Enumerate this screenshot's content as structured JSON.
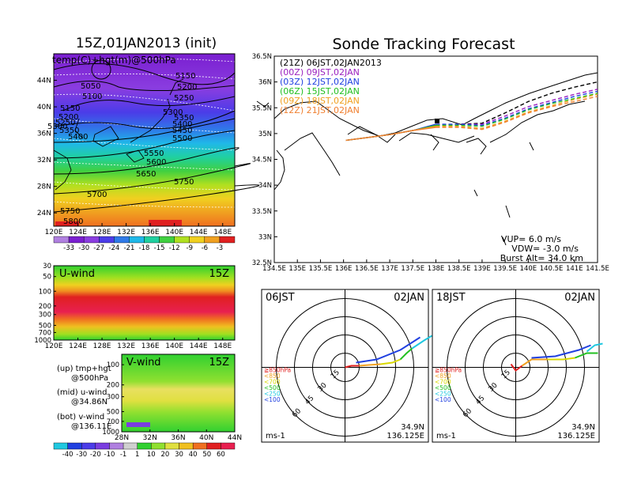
{
  "titles": {
    "map_title": "15Z,01JAN2013 (init)",
    "main_title": "Sonde Tracking Forecast"
  },
  "upper_panel": {
    "label": "temp(C)+hgt(m)@500hPa",
    "contours": [
      "5050",
      "5100",
      "5150",
      "5200",
      "5250",
      "5150",
      "5200",
      "5250",
      "5300",
      "5350",
      "5300",
      "5350",
      "5400",
      "5450",
      "5400",
      "5500",
      "5550",
      "5600",
      "5650",
      "5750",
      "5700",
      "5750",
      "5800"
    ],
    "colorbar_ticks": [
      "-33",
      "-30",
      "-27",
      "-24",
      "-21",
      "-18",
      "-15",
      "-12",
      "-9",
      "-6",
      "-3"
    ]
  },
  "u_panel": {
    "label": "U-wind",
    "time": "15Z"
  },
  "v_panel": {
    "label": "V-wind",
    "time": "15Z"
  },
  "left_legend": {
    "up": "(up) tmp+hgt",
    "up2": "@500hPa",
    "mid": "(mid) u-wind",
    "mid2": "@34.86N",
    "bot": "(bot) v-wind",
    "bot2": "@136.11E"
  },
  "wind_colorbar_ticks": [
    "-40",
    "-30",
    "-20",
    "-10",
    "-1",
    "1",
    "10",
    "20",
    "30",
    "40",
    "50",
    "60"
  ],
  "tracking": {
    "legend": [
      {
        "text": "(21Z) 06JST,02JAN2013",
        "color": "#000000"
      },
      {
        "text": "(00Z) 09JST,02JAN",
        "color": "#9a1fbf"
      },
      {
        "text": "(03Z) 12JST,02JAN",
        "color": "#2040e0"
      },
      {
        "text": "(06Z) 15JST,02JAN",
        "color": "#22c020"
      },
      {
        "text": "(09Z) 18JST,02JAN",
        "color": "#f0a020"
      },
      {
        "text": "(12Z) 21JST,02JAN",
        "color": "#f08030"
      }
    ],
    "params": {
      "vup": "VUP= 6.0 m/s",
      "vdw": "VDW= -3.0 m/s",
      "burst": "Burst Alt= 34.0 km"
    }
  },
  "hodographs": [
    {
      "time": "06JST",
      "date": "02JAN",
      "lat": "34.9N",
      "lon": "136.125E",
      "unit": "ms-1"
    },
    {
      "time": "18JST",
      "date": "02JAN",
      "lat": "34.9N",
      "lon": "136.125E",
      "unit": "ms-1"
    }
  ],
  "hodo_levels": [
    {
      "text": "≧850hPa",
      "color": "#e02020"
    },
    {
      "text": "<850",
      "color": "#f0a020"
    },
    {
      "text": "<700",
      "color": "#d8d800"
    },
    {
      "text": "<500",
      "color": "#22c020"
    },
    {
      "text": "<250",
      "color": "#20c8e0"
    },
    {
      "text": "<100",
      "color": "#2040e0"
    }
  ],
  "chart_data": [
    {
      "type": "heatmap",
      "title": "15Z,01JAN2013 (init)",
      "subtitle": "temp(C)+hgt(m)@500hPa",
      "x_ticks": [
        "120E",
        "124E",
        "128E",
        "132E",
        "136E",
        "140E",
        "144E",
        "148E"
      ],
      "y_ticks": [
        "24N",
        "28N",
        "32N",
        "36N",
        "40N",
        "44N"
      ],
      "xlim": [
        120,
        150
      ],
      "ylim": [
        22,
        48
      ],
      "colorbar": [
        -33,
        -30,
        -27,
        -24,
        -21,
        -18,
        -15,
        -12,
        -9,
        -6,
        -3
      ]
    },
    {
      "type": "heatmap",
      "title": "U-wind",
      "time": "15Z",
      "x_ticks": [
        "120E",
        "124E",
        "128E",
        "132E",
        "136E",
        "140E",
        "144E",
        "148E"
      ],
      "y_ticks": [
        "30",
        "50",
        "100",
        "200",
        "300",
        "500",
        "700",
        "1000"
      ]
    },
    {
      "type": "heatmap",
      "title": "V-wind",
      "time": "15Z",
      "x_ticks": [
        "28N",
        "32N",
        "36N",
        "40N",
        "44N"
      ],
      "y_ticks": [
        "100",
        "200",
        "300",
        "500",
        "700",
        "1000"
      ],
      "colorbar": [
        -40,
        -30,
        -20,
        -10,
        -1,
        1,
        10,
        20,
        30,
        40,
        50,
        60
      ]
    },
    {
      "type": "line",
      "title": "Sonde Tracking Forecast",
      "x_ticks": [
        "134.5E",
        "135E",
        "135.5E",
        "136E",
        "136.5E",
        "137E",
        "137.5E",
        "138E",
        "138.5E",
        "139E",
        "139.5E",
        "140E",
        "140.5E",
        "141E",
        "141.5E"
      ],
      "y_ticks": [
        "32.5N",
        "33N",
        "33.5N",
        "34N",
        "34.5N",
        "35N",
        "35.5N",
        "36N",
        "36.5N"
      ],
      "xlim": [
        134.5,
        141.5
      ],
      "ylim": [
        32.5,
        36.5
      ],
      "series": [
        {
          "name": "(21Z) 06JST,02JAN2013",
          "x": [
            136.05,
            136.5,
            137.0,
            137.5,
            138.0,
            138.5,
            139.0,
            139.5,
            140.0,
            140.5,
            141.0,
            141.5
          ],
          "y": [
            34.87,
            34.92,
            34.98,
            35.06,
            35.15,
            35.18,
            35.2,
            35.4,
            35.62,
            35.78,
            35.9,
            36.0
          ]
        },
        {
          "name": "(00Z) 09JST,02JAN",
          "x": [
            136.05,
            136.5,
            137.0,
            137.5,
            138.0,
            138.5,
            139.0,
            139.5,
            140.0,
            140.5,
            141.0,
            141.5
          ],
          "y": [
            34.87,
            34.92,
            34.98,
            35.06,
            35.17,
            35.18,
            35.18,
            35.34,
            35.52,
            35.64,
            35.76,
            35.86
          ]
        },
        {
          "name": "(03Z) 12JST,02JAN",
          "x": [
            136.05,
            136.5,
            137.0,
            137.5,
            138.0,
            138.5,
            139.0,
            139.5,
            140.0,
            140.5,
            141.0,
            141.5
          ],
          "y": [
            34.87,
            34.92,
            34.98,
            35.06,
            35.18,
            35.18,
            35.16,
            35.3,
            35.48,
            35.6,
            35.72,
            35.82
          ]
        },
        {
          "name": "(06Z) 15JST,02JAN",
          "x": [
            136.05,
            136.5,
            137.0,
            137.5,
            138.0,
            138.5,
            139.0,
            139.5,
            140.0,
            140.5,
            141.0,
            141.5
          ],
          "y": [
            34.87,
            34.92,
            34.98,
            35.06,
            35.16,
            35.16,
            35.14,
            35.28,
            35.46,
            35.58,
            35.68,
            35.78
          ]
        },
        {
          "name": "(09Z) 18JST,02JAN",
          "x": [
            136.05,
            136.5,
            137.0,
            137.5,
            138.0,
            138.5,
            139.0,
            139.5,
            140.0,
            140.5,
            141.0,
            141.5
          ],
          "y": [
            34.87,
            34.92,
            34.98,
            35.06,
            35.14,
            35.14,
            35.1,
            35.24,
            35.42,
            35.54,
            35.66,
            35.76
          ]
        },
        {
          "name": "(12Z) 21JST,02JAN",
          "x": [
            136.05,
            136.5,
            137.0,
            137.5,
            138.0,
            138.5,
            139.0,
            139.5,
            140.0,
            140.5,
            141.0,
            141.5
          ],
          "y": [
            34.87,
            34.92,
            34.98,
            35.06,
            35.12,
            35.12,
            35.08,
            35.22,
            35.4,
            35.52,
            35.62,
            35.72
          ]
        }
      ]
    },
    {
      "type": "scatter",
      "title": "06JST 02JAN",
      "rings": [
        "15",
        "30",
        "45",
        "60"
      ],
      "unit": "ms-1"
    },
    {
      "type": "scatter",
      "title": "18JST 02JAN",
      "rings": [
        "15",
        "30",
        "45",
        "60"
      ],
      "unit": "ms-1"
    }
  ]
}
